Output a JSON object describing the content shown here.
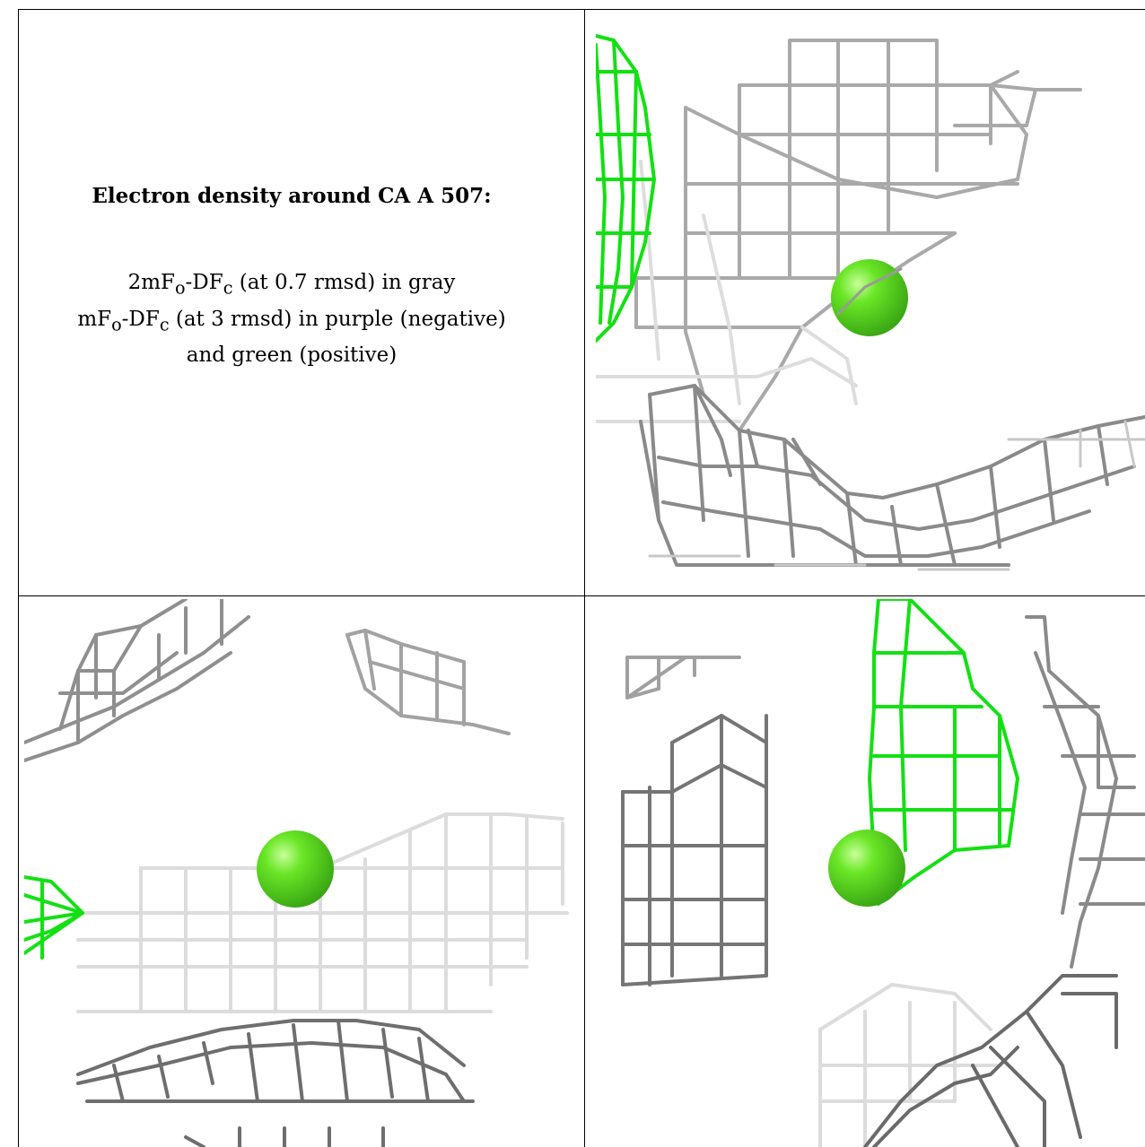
{
  "caption": {
    "title": "Electron density around CA A 507:",
    "line1_a": "2mF",
    "line1_sub1": "o",
    "line1_b": "-DF",
    "line1_sub2": "c",
    "line1_c": " (at 0.7 rmsd) in gray",
    "line2_a": "mF",
    "line2_sub1": "o",
    "line2_b": "-DF",
    "line2_sub2": "c",
    "line2_c": " (at 3 rmsd) in purple (negative)",
    "line3": "and green (positive)"
  },
  "colors": {
    "mesh_gray": "#9a9a9a",
    "mesh_light": "#d4d4d4",
    "mesh_dark": "#5c5c5c",
    "mesh_green": "#13e013",
    "ion": "#5ee21c"
  },
  "views": [
    {
      "name": "view-top-right"
    },
    {
      "name": "view-bottom-left"
    },
    {
      "name": "view-bottom-right"
    }
  ]
}
